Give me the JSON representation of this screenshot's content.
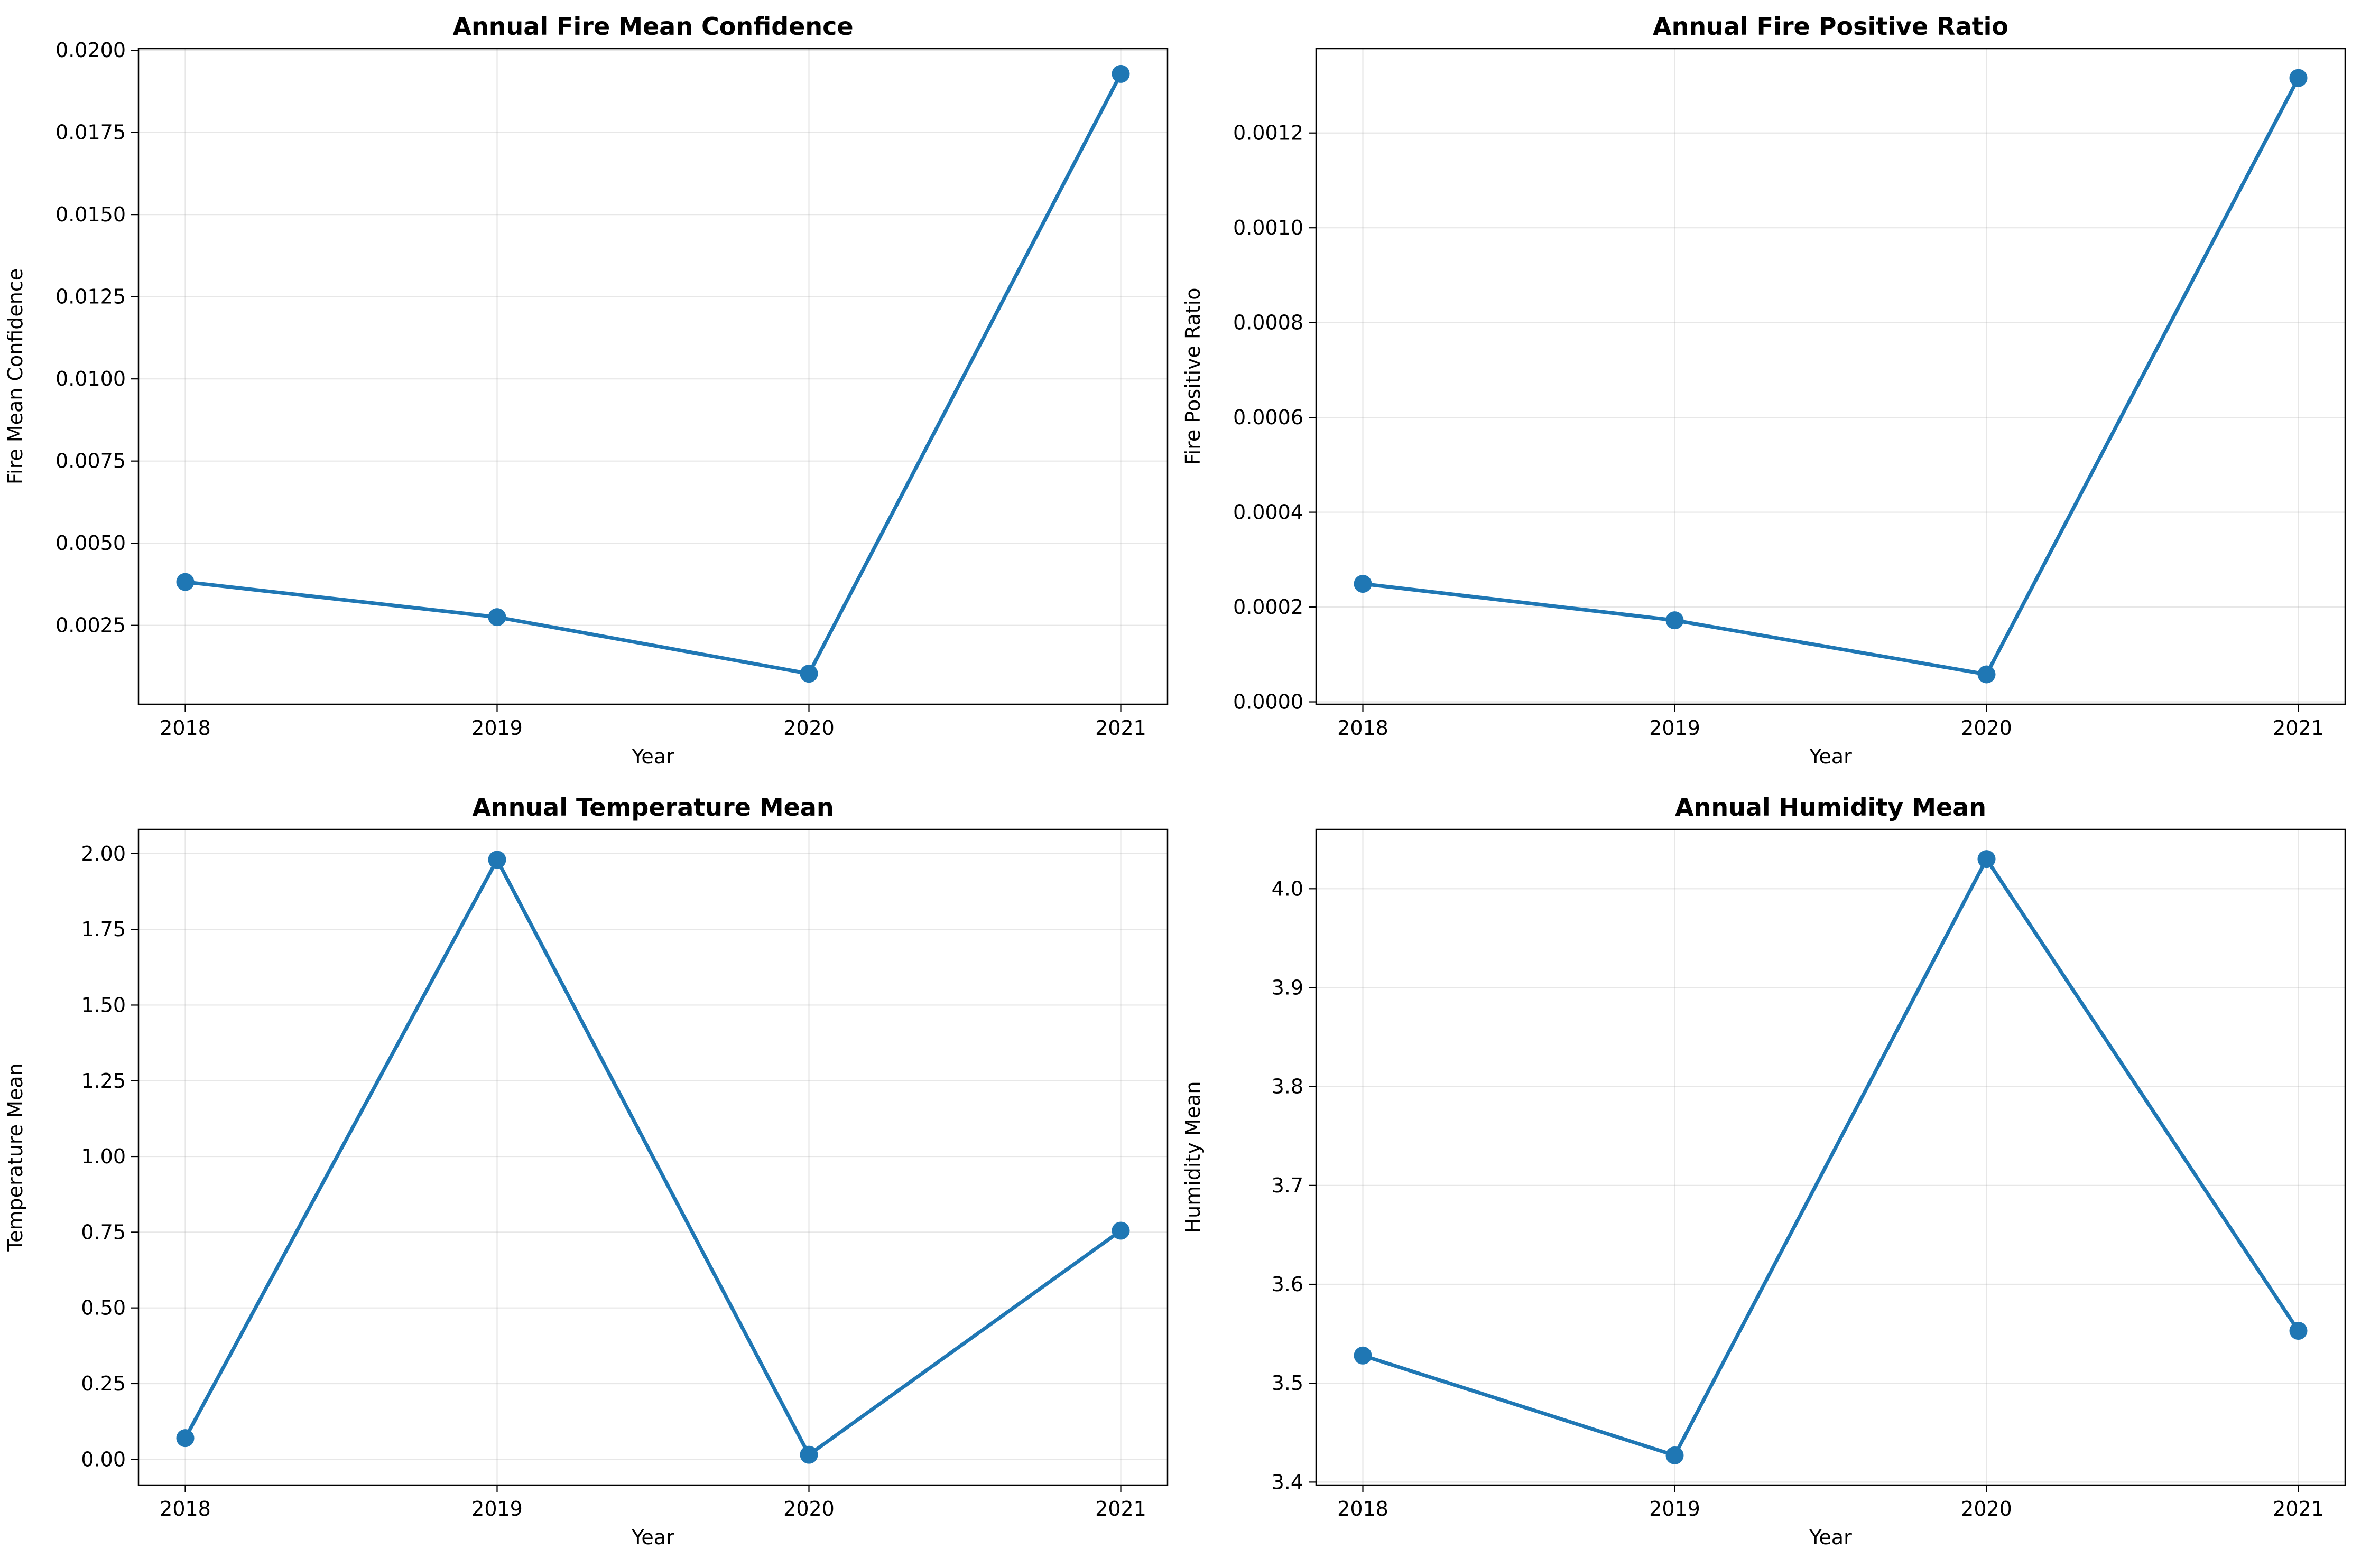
{
  "chart_data": [
    {
      "type": "line",
      "title": "Annual Fire Mean Confidence",
      "xlabel": "Year",
      "ylabel": "Fire Mean Confidence",
      "x": [
        "2018",
        "2019",
        "2020",
        "2021"
      ],
      "series": [
        {
          "values": [
            0.00382,
            0.00275,
            0.00103,
            0.01928
          ]
        }
      ],
      "ylim": [
        0.0001,
        0.02005
      ],
      "yticks": [
        0.0025,
        0.005,
        0.0075,
        0.01,
        0.0125,
        0.015,
        0.0175,
        0.02
      ],
      "ytick_labels": [
        "0.0025",
        "0.0050",
        "0.0075",
        "0.0100",
        "0.0125",
        "0.0150",
        "0.0175",
        "0.0200"
      ],
      "grid": true,
      "color": "#1f77b4"
    },
    {
      "type": "line",
      "title": "Annual Fire Positive Ratio",
      "xlabel": "Year",
      "ylabel": "Fire Positive Ratio",
      "x": [
        "2018",
        "2019",
        "2020",
        "2021"
      ],
      "series": [
        {
          "values": [
            0.000249,
            0.000172,
            5.8e-05,
            0.001316
          ]
        }
      ],
      "ylim": [
        -5e-06,
        0.001378
      ],
      "yticks": [
        0.0,
        0.0002,
        0.0004,
        0.0006,
        0.0008,
        0.001,
        0.0012
      ],
      "ytick_labels": [
        "0.0000",
        "0.0002",
        "0.0004",
        "0.0006",
        "0.0008",
        "0.0010",
        "0.0012"
      ],
      "grid": true,
      "color": "#1f77b4"
    },
    {
      "type": "line",
      "title": "Annual Temperature Mean",
      "xlabel": "Year",
      "ylabel": "Temperature Mean",
      "x": [
        "2018",
        "2019",
        "2020",
        "2021"
      ],
      "series": [
        {
          "values": [
            0.07,
            1.98,
            0.015,
            0.755
          ]
        }
      ],
      "ylim": [
        -0.085,
        2.08
      ],
      "yticks": [
        0.0,
        0.25,
        0.5,
        0.75,
        1.0,
        1.25,
        1.5,
        1.75,
        2.0
      ],
      "ytick_labels": [
        "0.00",
        "0.25",
        "0.50",
        "0.75",
        "1.00",
        "1.25",
        "1.50",
        "1.75",
        "2.00"
      ],
      "grid": true,
      "color": "#1f77b4"
    },
    {
      "type": "line",
      "title": "Annual Humidity Mean",
      "xlabel": "Year",
      "ylabel": "Humidity Mean",
      "x": [
        "2018",
        "2019",
        "2020",
        "2021"
      ],
      "series": [
        {
          "values": [
            3.528,
            3.427,
            4.03,
            3.553
          ]
        }
      ],
      "ylim": [
        3.397,
        4.06
      ],
      "yticks": [
        3.4,
        3.5,
        3.6,
        3.7,
        3.8,
        3.9,
        4.0
      ],
      "ytick_labels": [
        "3.4",
        "3.5",
        "3.6",
        "3.7",
        "3.8",
        "3.9",
        "4.0"
      ],
      "grid": true,
      "color": "#1f77b4"
    }
  ]
}
